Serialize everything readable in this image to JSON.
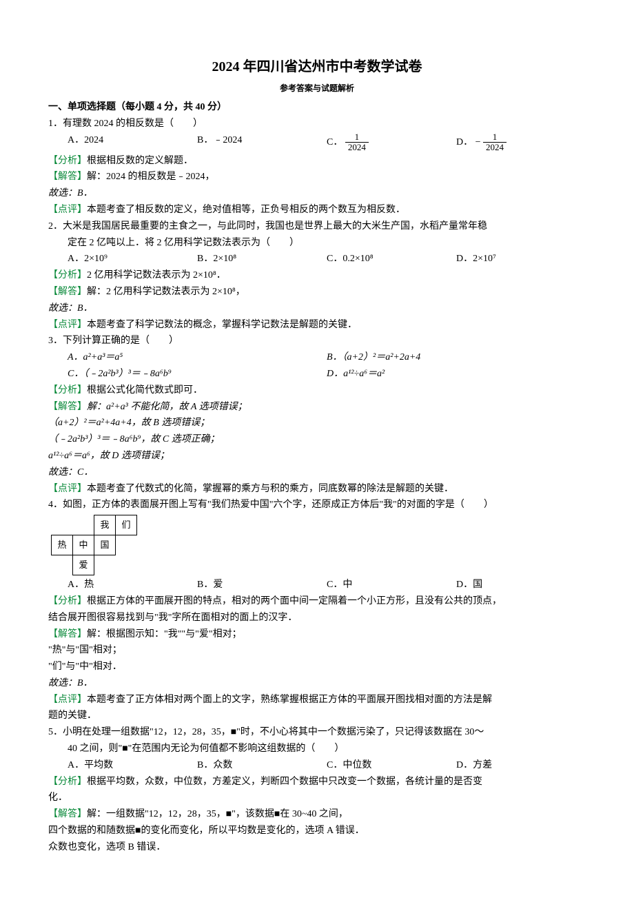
{
  "title": "2024 年四川省达州市中考数学试卷",
  "subtitle": "参考答案与试题解析",
  "section1": "一、单项选择题（每小题 4 分，共 40 分）",
  "q1": {
    "stem": "1．有理数 2024 的相反数是（　　）",
    "A": "A．2024",
    "B": "B．﹣2024",
    "C_pre": "C．",
    "C_num": "1",
    "C_den": "2024",
    "D_pre": "D．",
    "D_neg": "−",
    "D_num": "1",
    "D_den": "2024",
    "fx": "【分析】",
    "fx_t": "根据相反数的定义解题．",
    "jd": "【解答】",
    "jd_t": "解：2024 的相反数是﹣2024，",
    "ans": "故选：B．",
    "dp": "【点评】",
    "dp_t": "本题考查了相反数的定义，绝对值相等，正负号相反的两个数互为相反数．"
  },
  "q2": {
    "stem1": "2．大米是我国居民最重要的主食之一，与此同时，我国也是世界上最大的大米生产国，水稻产量常年稳",
    "stem2": "定在 2 亿吨以上．将 2 亿用科学记数法表示为（　　）",
    "A": "A．2×10⁹",
    "B": "B．2×10⁸",
    "C": "C．0.2×10⁸",
    "D": "D．2×10⁷",
    "fx": "【分析】",
    "fx_t": "2 亿用科学记数法表示为 2×10⁸．",
    "jd": "【解答】",
    "jd_t": "解：2 亿用科学记数法表示为 2×10⁸，",
    "ans": "故选：B．",
    "dp": "【点评】",
    "dp_t": "本题考查了科学记数法的概念，掌握科学记数法是解题的关键．"
  },
  "q3": {
    "stem": "3．下列计算正确的是（　　）",
    "A": "A．a²+a³＝a⁵",
    "B": "B．（a+2）²＝a²+2a+4",
    "C": "C．（﹣2a²b³）³＝﹣8a⁶b⁹",
    "D": "D．a¹²÷a⁶＝a²",
    "fx": "【分析】",
    "fx_t": "根据公式化简代数式即可．",
    "jd": "【解答】",
    "jd_t1": "解：a²+a³ 不能化简，故 A 选项错误；",
    "jd_t2": "（a+2）²＝a²+4a+4，故 B 选项错误；",
    "jd_t3": "（﹣2a²b³）³＝﹣8a⁶b⁹，故 C 选项正确；",
    "jd_t4": "a¹²÷a⁶＝a⁶，故 D 选项错误；",
    "ans": "故选：C．",
    "dp": "【点评】",
    "dp_t": "本题考查了代数式的化简，掌握幂的乘方与积的乘方，同底数幂的除法是解题的关键．"
  },
  "q4": {
    "stem": "4．如图，正方体的表面展开图上写有\"我们热爱中国\"六个字，还原成正方体后\"我\"的对面的字是（　　）",
    "net": {
      "r1c3": "我",
      "r1c4": "们",
      "r2c1": "热",
      "r2c2": "中",
      "r2c3": "国",
      "r3c2": "爱"
    },
    "A": "A．热",
    "B": "B．爱",
    "C": "C．中",
    "D": "D．国",
    "fx": "【分析】",
    "fx_t1": "根据正方体的平面展开图的特点，相对的两个面中间一定隔着一个小正方形，且没有公共的顶点，",
    "fx_t2": "结合展开图很容易找到与\"我\"字所在面相对的面上的汉字．",
    "jd": "【解答】",
    "jd_t1": "解：根据图示知：\"我\"\"与\"爱\"相对；",
    "jd_t2": "\"热\"与\"国\"相对；",
    "jd_t3": "\"们\"与\"中\"相对．",
    "ans": "故选：B．",
    "dp": "【点评】",
    "dp_t1": "本题考查了正方体相对两个面上的文字，熟练掌握根据正方体的平面展开图找相对面的方法是解",
    "dp_t2": "题的关键．"
  },
  "q5": {
    "stem1": "5．小明在处理一组数据\"12，12，28，35，■\"时，不小心将其中一个数据污染了，只记得该数据在 30～",
    "stem2": "40 之间，则\"■\"在范围内无论为何值都不影响这组数据的（　　）",
    "A": "A．平均数",
    "B": "B．众数",
    "C": "C．中位数",
    "D": "D．方差",
    "fx": "【分析】",
    "fx_t1": "根据平均数，众数，中位数，方差定义，判断四个数据中只改变一个数据，各统计量的是否变",
    "fx_t2": "化．",
    "jd": "【解答】",
    "jd_t1": "解：一组数据\"12，12，28，35，■\"，该数据■在 30~40 之间，",
    "jd_t2": "四个数据的和随数据■的变化而变化，所以平均数是变化的，选项 A 错误．",
    "jd_t3": "众数也变化，选项 B 错误．"
  }
}
